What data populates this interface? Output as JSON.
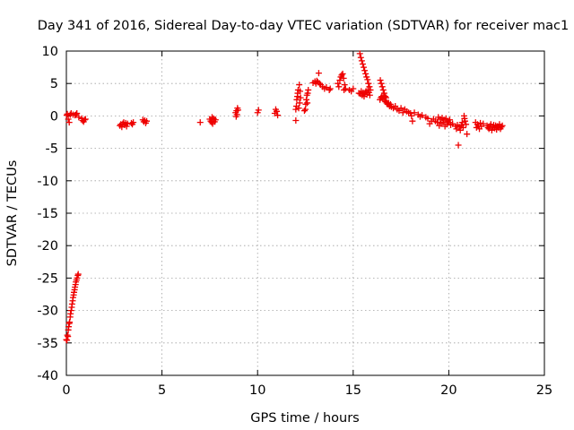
{
  "chart_data": {
    "type": "scatter",
    "title": "Day 341 of 2016, Sidereal Day-to-day VTEC variation (SDTVAR) for receiver mac1",
    "xlabel": "GPS time / hours",
    "ylabel": "SDTVAR / TECUs",
    "xlim": [
      0,
      25
    ],
    "ylim": [
      -40,
      10
    ],
    "x_ticks": [
      0,
      5,
      10,
      15,
      20,
      25
    ],
    "y_ticks": [
      10,
      5,
      0,
      -5,
      -10,
      -15,
      -20,
      -25,
      -30,
      -35,
      -40
    ],
    "grid": true,
    "marker": "plus",
    "color": "#ee0000",
    "series": [
      {
        "name": "SDTVAR",
        "points": [
          [
            0.0,
            -34.5
          ],
          [
            0.03,
            -34.6
          ],
          [
            0.05,
            -33.8
          ],
          [
            0.08,
            -34.0
          ],
          [
            0.1,
            -33.0
          ],
          [
            0.12,
            -32.5
          ],
          [
            0.15,
            -32.0
          ],
          [
            0.17,
            -31.8
          ],
          [
            0.2,
            -31.0
          ],
          [
            0.22,
            -30.5
          ],
          [
            0.25,
            -30.0
          ],
          [
            0.28,
            -29.5
          ],
          [
            0.3,
            -29.0
          ],
          [
            0.33,
            -28.5
          ],
          [
            0.35,
            -28.0
          ],
          [
            0.38,
            -27.6
          ],
          [
            0.4,
            -27.2
          ],
          [
            0.43,
            -26.8
          ],
          [
            0.45,
            -26.4
          ],
          [
            0.48,
            -26.0
          ],
          [
            0.5,
            -25.6
          ],
          [
            0.53,
            -25.3
          ],
          [
            0.56,
            -25.0
          ],
          [
            0.6,
            -24.6
          ],
          [
            0.62,
            -24.4
          ],
          [
            0.02,
            0.1
          ],
          [
            0.05,
            0.3
          ],
          [
            0.1,
            -0.5
          ],
          [
            0.15,
            -1.0
          ],
          [
            0.2,
            0.2
          ],
          [
            0.25,
            0.4
          ],
          [
            0.35,
            0.2
          ],
          [
            0.45,
            0.1
          ],
          [
            0.5,
            0.2
          ],
          [
            0.55,
            0.4
          ],
          [
            0.65,
            -0.2
          ],
          [
            0.8,
            -0.4
          ],
          [
            0.85,
            -0.7
          ],
          [
            0.9,
            -0.9
          ],
          [
            0.95,
            -0.6
          ],
          [
            1.0,
            -0.5
          ],
          [
            2.8,
            -1.5
          ],
          [
            2.85,
            -1.3
          ],
          [
            2.9,
            -1.7
          ],
          [
            2.95,
            -1.2
          ],
          [
            3.0,
            -1.0
          ],
          [
            3.05,
            -1.4
          ],
          [
            3.1,
            -1.1
          ],
          [
            3.15,
            -1.6
          ],
          [
            3.2,
            -1.2
          ],
          [
            3.4,
            -1.1
          ],
          [
            3.45,
            -1.3
          ],
          [
            3.5,
            -1.0
          ],
          [
            4.0,
            -0.6
          ],
          [
            4.05,
            -0.9
          ],
          [
            4.1,
            -0.7
          ],
          [
            4.15,
            -1.1
          ],
          [
            4.2,
            -0.8
          ],
          [
            7.0,
            -1.0
          ],
          [
            7.5,
            -0.5
          ],
          [
            7.55,
            -0.8
          ],
          [
            7.6,
            -1.0
          ],
          [
            7.62,
            -0.2
          ],
          [
            7.65,
            -1.2
          ],
          [
            7.7,
            -0.4
          ],
          [
            7.75,
            -0.9
          ],
          [
            7.8,
            -0.6
          ],
          [
            8.85,
            0.5
          ],
          [
            8.88,
            -0.1
          ],
          [
            8.9,
            0.8
          ],
          [
            8.92,
            0.2
          ],
          [
            8.95,
            1.2
          ],
          [
            8.98,
            0.9
          ],
          [
            10.0,
            0.5
          ],
          [
            10.05,
            0.9
          ],
          [
            10.9,
            0.4
          ],
          [
            10.95,
            1.0
          ],
          [
            11.0,
            0.7
          ],
          [
            11.05,
            0.1
          ],
          [
            12.0,
            -0.7
          ],
          [
            12.0,
            1.0
          ],
          [
            12.03,
            1.5
          ],
          [
            12.05,
            2.5
          ],
          [
            12.08,
            3.0
          ],
          [
            12.1,
            3.5
          ],
          [
            12.12,
            4.0
          ],
          [
            12.15,
            1.2
          ],
          [
            12.18,
            4.8
          ],
          [
            12.2,
            2.0
          ],
          [
            12.22,
            3.8
          ],
          [
            12.25,
            2.8
          ],
          [
            12.45,
            0.8
          ],
          [
            12.5,
            1.0
          ],
          [
            12.52,
            1.8
          ],
          [
            12.55,
            2.5
          ],
          [
            12.58,
            3.2
          ],
          [
            12.6,
            2.0
          ],
          [
            12.62,
            3.5
          ],
          [
            12.65,
            4.0
          ],
          [
            12.9,
            5.1
          ],
          [
            13.0,
            5.3
          ],
          [
            13.05,
            5.0
          ],
          [
            13.1,
            5.4
          ],
          [
            13.15,
            5.2
          ],
          [
            13.2,
            6.6
          ],
          [
            13.25,
            5.0
          ],
          [
            13.3,
            4.8
          ],
          [
            13.4,
            4.5
          ],
          [
            13.5,
            4.2
          ],
          [
            13.6,
            4.4
          ],
          [
            13.75,
            4.0
          ],
          [
            13.8,
            4.2
          ],
          [
            14.2,
            5.0
          ],
          [
            14.25,
            4.5
          ],
          [
            14.3,
            5.5
          ],
          [
            14.35,
            6.0
          ],
          [
            14.4,
            6.3
          ],
          [
            14.45,
            6.5
          ],
          [
            14.5,
            5.8
          ],
          [
            14.52,
            4.0
          ],
          [
            14.55,
            4.8
          ],
          [
            14.6,
            4.2
          ],
          [
            14.8,
            4.0
          ],
          [
            14.9,
            3.8
          ],
          [
            15.0,
            4.2
          ],
          [
            15.3,
            3.5
          ],
          [
            15.35,
            9.6
          ],
          [
            15.37,
            3.4
          ],
          [
            15.4,
            9.0
          ],
          [
            15.42,
            3.8
          ],
          [
            15.45,
            8.5
          ],
          [
            15.47,
            3.2
          ],
          [
            15.5,
            8.0
          ],
          [
            15.52,
            3.6
          ],
          [
            15.55,
            7.5
          ],
          [
            15.57,
            3.0
          ],
          [
            15.6,
            7.0
          ],
          [
            15.62,
            3.5
          ],
          [
            15.65,
            6.5
          ],
          [
            15.67,
            3.8
          ],
          [
            15.7,
            6.0
          ],
          [
            15.72,
            3.3
          ],
          [
            15.75,
            5.6
          ],
          [
            15.77,
            4.0
          ],
          [
            15.8,
            5.0
          ],
          [
            15.82,
            3.6
          ],
          [
            15.85,
            4.5
          ],
          [
            15.87,
            3.2
          ],
          [
            15.9,
            4.0
          ],
          [
            16.4,
            2.5
          ],
          [
            16.42,
            5.5
          ],
          [
            16.45,
            2.8
          ],
          [
            16.47,
            5.0
          ],
          [
            16.5,
            3.0
          ],
          [
            16.52,
            4.5
          ],
          [
            16.55,
            2.6
          ],
          [
            16.57,
            4.0
          ],
          [
            16.6,
            3.2
          ],
          [
            16.62,
            3.5
          ],
          [
            16.65,
            2.4
          ],
          [
            16.67,
            3.0
          ],
          [
            16.7,
            2.2
          ],
          [
            16.72,
            2.8
          ],
          [
            16.75,
            2.0
          ],
          [
            16.8,
            1.8
          ],
          [
            16.85,
            2.0
          ],
          [
            16.9,
            1.5
          ],
          [
            16.95,
            1.8
          ],
          [
            17.0,
            1.4
          ],
          [
            17.1,
            1.2
          ],
          [
            17.2,
            1.5
          ],
          [
            17.3,
            1.0
          ],
          [
            17.4,
            0.8
          ],
          [
            17.5,
            1.2
          ],
          [
            17.6,
            0.5
          ],
          [
            17.7,
            1.0
          ],
          [
            17.8,
            0.7
          ],
          [
            17.9,
            0.5
          ],
          [
            18.0,
            0.4
          ],
          [
            18.05,
            0.0
          ],
          [
            18.1,
            -0.8
          ],
          [
            18.2,
            0.5
          ],
          [
            18.4,
            0.2
          ],
          [
            18.5,
            -0.1
          ],
          [
            18.6,
            0.1
          ],
          [
            18.8,
            -0.2
          ],
          [
            18.9,
            -0.4
          ],
          [
            19.0,
            -1.2
          ],
          [
            19.1,
            -0.8
          ],
          [
            19.2,
            -0.5
          ],
          [
            19.3,
            -0.8
          ],
          [
            19.4,
            -1.0
          ],
          [
            19.45,
            -0.2
          ],
          [
            19.5,
            -1.5
          ],
          [
            19.55,
            -0.5
          ],
          [
            19.6,
            -1.2
          ],
          [
            19.65,
            -0.3
          ],
          [
            19.7,
            -1.0
          ],
          [
            19.75,
            -0.6
          ],
          [
            19.8,
            -1.6
          ],
          [
            19.85,
            -0.4
          ],
          [
            19.9,
            -1.3
          ],
          [
            19.95,
            -0.8
          ],
          [
            20.0,
            -1.0
          ],
          [
            20.05,
            -0.6
          ],
          [
            20.1,
            -1.4
          ],
          [
            20.2,
            -1.2
          ],
          [
            20.35,
            -1.6
          ],
          [
            20.4,
            -2.0
          ],
          [
            20.45,
            -1.4
          ],
          [
            20.5,
            -4.5
          ],
          [
            20.55,
            -1.7
          ],
          [
            20.6,
            -2.2
          ],
          [
            20.65,
            -1.5
          ],
          [
            20.7,
            -1.0
          ],
          [
            20.75,
            -1.8
          ],
          [
            20.8,
            0.0
          ],
          [
            20.82,
            -0.4
          ],
          [
            20.85,
            -0.8
          ],
          [
            20.9,
            -1.3
          ],
          [
            20.95,
            -2.8
          ],
          [
            21.4,
            -1.0
          ],
          [
            21.45,
            -1.8
          ],
          [
            21.5,
            -1.3
          ],
          [
            21.55,
            -1.6
          ],
          [
            21.6,
            -2.0
          ],
          [
            21.65,
            -1.1
          ],
          [
            21.7,
            -1.6
          ],
          [
            21.8,
            -1.2
          ],
          [
            22.0,
            -1.5
          ],
          [
            22.05,
            -1.8
          ],
          [
            22.1,
            -2.0
          ],
          [
            22.15,
            -1.6
          ],
          [
            22.2,
            -1.3
          ],
          [
            22.25,
            -2.2
          ],
          [
            22.3,
            -1.7
          ],
          [
            22.35,
            -1.4
          ],
          [
            22.4,
            -1.9
          ],
          [
            22.45,
            -1.5
          ],
          [
            22.5,
            -2.1
          ],
          [
            22.55,
            -1.6
          ],
          [
            22.6,
            -1.8
          ],
          [
            22.65,
            -1.3
          ],
          [
            22.7,
            -2.0
          ],
          [
            22.75,
            -1.7
          ],
          [
            22.8,
            -1.5
          ]
        ]
      }
    ]
  }
}
